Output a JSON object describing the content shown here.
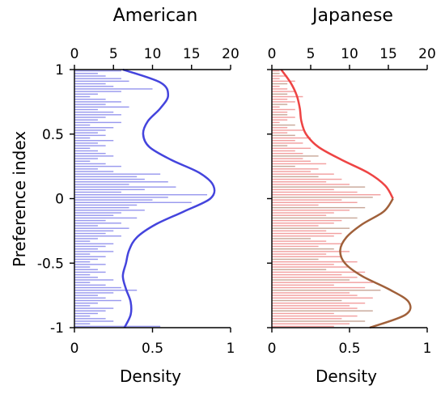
{
  "chart_data": [
    {
      "type": "bar",
      "panel": "left",
      "title": "American",
      "ylabel": "Preference index",
      "xlabel_bottom": "Density",
      "bottom_axis": {
        "range": [
          0,
          1
        ],
        "ticks": [
          "0",
          "0.5",
          "1"
        ]
      },
      "top_axis": {
        "range": [
          0,
          20
        ],
        "ticks": [
          "0",
          "5",
          "10",
          "15",
          "20"
        ]
      },
      "y_axis": {
        "range": [
          -1,
          1
        ],
        "ticks": [
          "1",
          "0.5",
          "0",
          "-0.5",
          "-1"
        ]
      },
      "bar_color": "#9999ee",
      "curve_colors": [
        "#4444dd"
      ],
      "histogram_y": [
        0.99,
        0.97,
        0.95,
        0.93,
        0.91,
        0.89,
        0.87,
        0.85,
        0.83,
        0.81,
        0.79,
        0.77,
        0.75,
        0.73,
        0.71,
        0.69,
        0.67,
        0.65,
        0.63,
        0.61,
        0.59,
        0.57,
        0.55,
        0.53,
        0.51,
        0.49,
        0.47,
        0.45,
        0.43,
        0.41,
        0.39,
        0.37,
        0.35,
        0.33,
        0.31,
        0.29,
        0.27,
        0.25,
        0.23,
        0.21,
        0.19,
        0.17,
        0.15,
        0.13,
        0.11,
        0.09,
        0.07,
        0.05,
        0.03,
        0.01,
        -0.01,
        -0.03,
        -0.05,
        -0.07,
        -0.09,
        -0.11,
        -0.13,
        -0.15,
        -0.17,
        -0.19,
        -0.21,
        -0.23,
        -0.25,
        -0.27,
        -0.29,
        -0.31,
        -0.33,
        -0.35,
        -0.37,
        -0.39,
        -0.41,
        -0.43,
        -0.45,
        -0.47,
        -0.49,
        -0.51,
        -0.53,
        -0.55,
        -0.57,
        -0.59,
        -0.61,
        -0.63,
        -0.65,
        -0.67,
        -0.69,
        -0.71,
        -0.73,
        -0.75,
        -0.77,
        -0.79,
        -0.81,
        -0.83,
        -0.85,
        -0.87,
        -0.89,
        -0.91,
        -0.93,
        -0.95,
        -0.97,
        -0.99
      ],
      "histogram_counts": [
        6,
        3,
        4,
        6,
        7,
        4,
        5,
        10,
        6,
        3,
        2,
        4,
        6,
        4,
        7,
        3,
        5,
        6,
        4,
        3,
        6,
        2,
        5,
        4,
        3,
        4,
        2,
        5,
        3,
        4,
        2,
        3,
        4,
        5,
        3,
        2,
        4,
        6,
        3,
        5,
        11,
        8,
        9,
        12,
        7,
        13,
        9,
        6,
        17,
        12,
        10,
        15,
        8,
        7,
        9,
        6,
        5,
        8,
        4,
        6,
        3,
        7,
        5,
        4,
        6,
        3,
        2,
        5,
        4,
        3,
        5,
        2,
        4,
        3,
        2,
        4,
        2,
        3,
        4,
        2,
        3,
        5,
        2,
        4,
        6,
        8,
        5,
        3,
        4,
        6,
        3,
        2,
        5,
        4,
        3,
        2,
        4,
        5,
        2,
        11
      ],
      "density_y": [
        1.0,
        0.9,
        0.8,
        0.7,
        0.6,
        0.5,
        0.4,
        0.3,
        0.2,
        0.1,
        0.0,
        -0.1,
        -0.2,
        -0.3,
        -0.4,
        -0.5,
        -0.6,
        -0.7,
        -0.8,
        -0.9,
        -1.0
      ],
      "density_x": [
        0.31,
        0.55,
        0.6,
        0.55,
        0.47,
        0.44,
        0.48,
        0.62,
        0.8,
        0.89,
        0.87,
        0.7,
        0.52,
        0.4,
        0.35,
        0.33,
        0.31,
        0.33,
        0.36,
        0.36,
        0.32
      ]
    },
    {
      "type": "bar",
      "panel": "right",
      "title": "Japanese",
      "xlabel_bottom": "Density",
      "bottom_axis": {
        "range": [
          0,
          1
        ],
        "ticks": [
          "0",
          "0.5",
          "1"
        ]
      },
      "top_axis": {
        "range": [
          0,
          20
        ],
        "ticks": [
          "0",
          "5",
          "10",
          "15",
          "20"
        ]
      },
      "y_axis": {
        "range": [
          -1,
          1
        ],
        "ticks": [
          "1",
          "0.5",
          "0",
          "-0.5",
          "-1"
        ]
      },
      "bar_colors": [
        "#f2a0a0",
        "#c9a89a"
      ],
      "curve_colors": [
        "#ee4444",
        "#a0603a"
      ],
      "histogram_y": [
        0.99,
        0.97,
        0.95,
        0.93,
        0.91,
        0.89,
        0.87,
        0.85,
        0.83,
        0.81,
        0.79,
        0.77,
        0.75,
        0.73,
        0.71,
        0.69,
        0.67,
        0.65,
        0.63,
        0.61,
        0.59,
        0.57,
        0.55,
        0.53,
        0.51,
        0.49,
        0.47,
        0.45,
        0.43,
        0.41,
        0.39,
        0.37,
        0.35,
        0.33,
        0.31,
        0.29,
        0.27,
        0.25,
        0.23,
        0.21,
        0.19,
        0.17,
        0.15,
        0.13,
        0.11,
        0.09,
        0.07,
        0.05,
        0.03,
        0.01,
        -0.01,
        -0.03,
        -0.05,
        -0.07,
        -0.09,
        -0.11,
        -0.13,
        -0.15,
        -0.17,
        -0.19,
        -0.21,
        -0.23,
        -0.25,
        -0.27,
        -0.29,
        -0.31,
        -0.33,
        -0.35,
        -0.37,
        -0.39,
        -0.41,
        -0.43,
        -0.45,
        -0.47,
        -0.49,
        -0.51,
        -0.53,
        -0.55,
        -0.57,
        -0.59,
        -0.61,
        -0.63,
        -0.65,
        -0.67,
        -0.69,
        -0.71,
        -0.73,
        -0.75,
        -0.77,
        -0.79,
        -0.81,
        -0.83,
        -0.85,
        -0.87,
        -0.89,
        -0.91,
        -0.93,
        -0.95,
        -0.97,
        -0.99
      ],
      "histogram_counts": [
        1,
        1,
        2,
        1,
        3,
        2,
        1,
        2,
        3,
        2,
        4,
        2,
        3,
        2,
        1,
        3,
        2,
        2,
        3,
        2,
        1,
        3,
        2,
        4,
        2,
        3,
        5,
        3,
        4,
        2,
        5,
        3,
        4,
        6,
        4,
        5,
        7,
        3,
        6,
        5,
        8,
        6,
        9,
        7,
        10,
        12,
        8,
        11,
        14,
        13,
        9,
        11,
        6,
        12,
        10,
        8,
        7,
        11,
        9,
        8,
        6,
        10,
        7,
        9,
        8,
        5,
        7,
        9,
        6,
        8,
        10,
        7,
        9,
        6,
        11,
        8,
        10,
        7,
        12,
        9,
        11,
        10,
        13,
        8,
        12,
        14,
        10,
        11,
        13,
        9,
        12,
        10,
        11,
        13,
        8,
        11,
        9,
        12,
        10,
        8
      ],
      "density_y": [
        1.0,
        0.9,
        0.8,
        0.7,
        0.6,
        0.5,
        0.4,
        0.3,
        0.2,
        0.1,
        0.0,
        -0.1,
        -0.2,
        -0.3,
        -0.4,
        -0.5,
        -0.6,
        -0.7,
        -0.8,
        -0.9,
        -1.0
      ],
      "density_x": [
        0.06,
        0.12,
        0.16,
        0.18,
        0.19,
        0.22,
        0.3,
        0.45,
        0.62,
        0.73,
        0.78,
        0.72,
        0.58,
        0.48,
        0.44,
        0.47,
        0.58,
        0.75,
        0.88,
        0.86,
        0.63
      ]
    }
  ]
}
